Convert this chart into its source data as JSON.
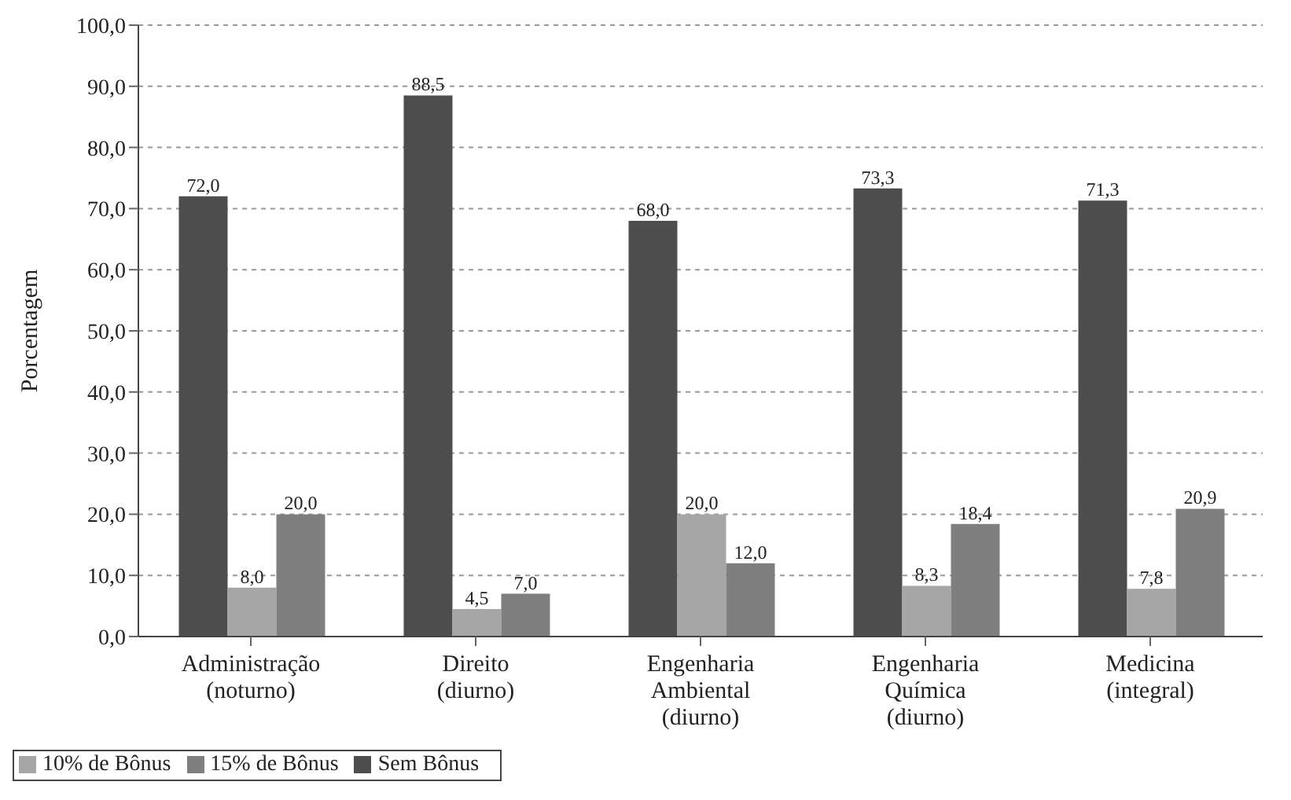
{
  "chart_data": {
    "type": "bar",
    "ylabel": "Porcentagem",
    "categories": [
      "Administração (noturno)",
      "Direito (diurno)",
      "Engenharia Ambiental (diurno)",
      "Engenharia Química (diurno)",
      "Medicina (integral)"
    ],
    "series": [
      {
        "name": "Sem Bônus",
        "color": "#4d4d4d",
        "values": [
          72.0,
          88.5,
          68.0,
          73.3,
          71.3
        ],
        "value_labels": [
          "72,0",
          "88,5",
          "68,0",
          "73,3",
          "71,3"
        ]
      },
      {
        "name": "10% de Bônus",
        "color": "#a6a6a6",
        "values": [
          8.0,
          4.5,
          20.0,
          8.3,
          7.8
        ],
        "value_labels": [
          "8,0",
          "4,5",
          "20,0",
          "8,3",
          "7,8"
        ]
      },
      {
        "name": "15% de Bônus",
        "color": "#7f7f7f",
        "values": [
          20.0,
          7.0,
          12.0,
          18.4,
          20.9
        ],
        "value_labels": [
          "20,0",
          "7,0",
          "12,0",
          "18,4",
          "20,9"
        ]
      }
    ],
    "ylim": [
      0,
      100
    ],
    "yticks": [
      {
        "value": 0,
        "label": "0,0"
      },
      {
        "value": 10,
        "label": "10,0"
      },
      {
        "value": 20,
        "label": "20,0"
      },
      {
        "value": 30,
        "label": "30,0"
      },
      {
        "value": 40,
        "label": "40,0"
      },
      {
        "value": 50,
        "label": "50,0"
      },
      {
        "value": 60,
        "label": "60,0"
      },
      {
        "value": 70,
        "label": "70,0"
      },
      {
        "value": 80,
        "label": "80,0"
      },
      {
        "value": 90,
        "label": "90,0"
      },
      {
        "value": 100,
        "label": "100,0"
      }
    ],
    "grid": "y",
    "legend": "bottom left"
  }
}
